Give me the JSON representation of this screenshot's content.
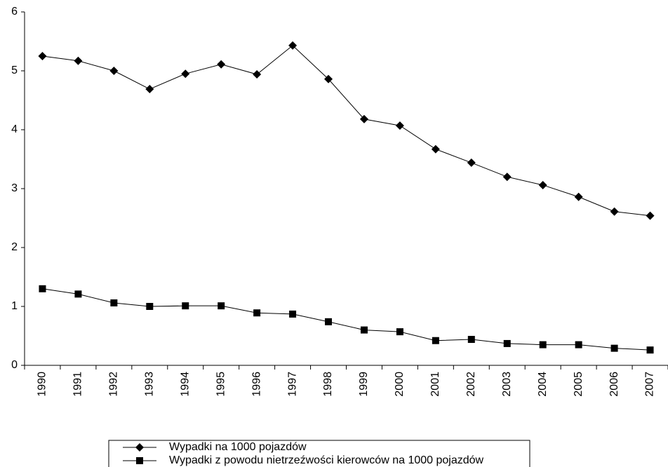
{
  "chart_data": {
    "type": "line",
    "categories": [
      "1990",
      "1991",
      "1992",
      "1993",
      "1994",
      "1995",
      "1996",
      "1997",
      "1998",
      "1999",
      "2000",
      "2001",
      "2002",
      "2003",
      "2004",
      "2005",
      "2006",
      "2007"
    ],
    "series": [
      {
        "name": "Wypadki na 1000 pojazdów",
        "color": "#000000",
        "marker": "diamond",
        "values": [
          5.25,
          5.17,
          5.0,
          4.69,
          4.95,
          5.11,
          4.94,
          5.43,
          4.86,
          4.18,
          4.07,
          3.67,
          3.44,
          3.2,
          3.06,
          2.86,
          2.61,
          2.54
        ]
      },
      {
        "name": "Wypadki z powodu nietrzeźwości kierowców na 1000 pojazdów",
        "color": "#000000",
        "marker": "square",
        "values": [
          1.3,
          1.21,
          1.06,
          1.0,
          1.01,
          1.01,
          0.89,
          0.87,
          0.74,
          0.6,
          0.57,
          0.42,
          0.44,
          0.37,
          0.35,
          0.35,
          0.29,
          0.26
        ]
      }
    ],
    "ylim": [
      0,
      6
    ],
    "yticks": [
      0,
      1,
      2,
      3,
      4,
      5,
      6
    ],
    "grid": false,
    "legend": "bottom"
  }
}
